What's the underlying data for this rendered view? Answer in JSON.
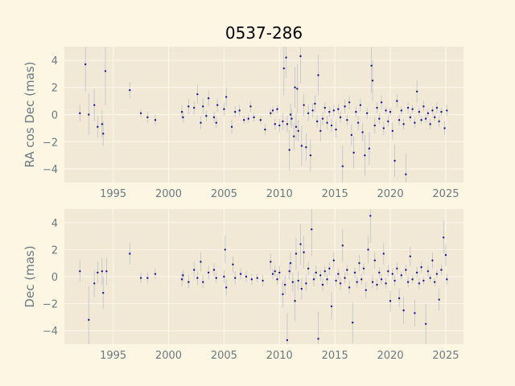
{
  "chart_data": {
    "type": "scatter",
    "title": "0537-286",
    "colors": {
      "background": "#fdf6e3",
      "axes_face": "#f1e9d6",
      "grid": "#fdf8ec",
      "marker": "#1a1a8c",
      "errorbar": "#a0a8c8"
    },
    "x_ticks": [
      "1995",
      "2000",
      "2005",
      "2010",
      "2015",
      "2020",
      "2025"
    ],
    "xlim": [
      1990.6,
      2026.6
    ],
    "panels": [
      {
        "ylabel": "RA cos Dec (mas)",
        "ylim": [
          -5,
          5
        ],
        "y_ticks": [
          "4",
          "2",
          "0",
          "−2",
          "−4"
        ],
        "y_tick_values": [
          4,
          2,
          0,
          -2,
          -4
        ],
        "points": [
          [
            1992.0,
            0.1,
            0.6
          ],
          [
            1992.5,
            3.7,
            2.0
          ],
          [
            1992.8,
            0.0,
            1.5
          ],
          [
            1993.3,
            0.7,
            1.2
          ],
          [
            1993.6,
            -0.9,
            0.8
          ],
          [
            1994.0,
            -0.7,
            1.0
          ],
          [
            1994.1,
            -1.4,
            0.9
          ],
          [
            1994.3,
            3.2,
            2.5
          ],
          [
            1996.5,
            1.8,
            0.6
          ],
          [
            1997.5,
            0.1,
            0.3
          ],
          [
            1998.1,
            -0.2,
            0.4
          ],
          [
            1998.8,
            -0.4,
            0.4
          ],
          [
            2001.2,
            0.2,
            0.5
          ],
          [
            2001.3,
            -0.2,
            0.4
          ],
          [
            2001.8,
            0.6,
            0.6
          ],
          [
            2002.3,
            0.5,
            0.5
          ],
          [
            2002.6,
            1.5,
            0.7
          ],
          [
            2002.9,
            -0.6,
            0.5
          ],
          [
            2003.1,
            0.6,
            0.6
          ],
          [
            2003.4,
            -0.1,
            0.4
          ],
          [
            2003.6,
            1.2,
            0.6
          ],
          [
            2004.1,
            -0.2,
            0.4
          ],
          [
            2004.3,
            -0.6,
            0.4
          ],
          [
            2004.4,
            0.7,
            0.5
          ],
          [
            2005.0,
            0.4,
            0.5
          ],
          [
            2005.2,
            1.3,
            0.7
          ],
          [
            2005.7,
            -0.9,
            0.5
          ],
          [
            2006.0,
            0.2,
            0.4
          ],
          [
            2006.4,
            0.3,
            0.4
          ],
          [
            2006.8,
            -0.4,
            0.3
          ],
          [
            2007.2,
            -0.3,
            0.3
          ],
          [
            2007.4,
            0.6,
            0.4
          ],
          [
            2007.7,
            -0.2,
            0.3
          ],
          [
            2008.3,
            -0.4,
            0.3
          ],
          [
            2008.7,
            -1.1,
            0.4
          ],
          [
            2009.2,
            0.1,
            0.3
          ],
          [
            2009.4,
            0.3,
            0.3
          ],
          [
            2009.6,
            -0.7,
            0.4
          ],
          [
            2009.8,
            0.4,
            0.3
          ],
          [
            2010.0,
            -0.8,
            0.5
          ],
          [
            2010.3,
            -0.5,
            0.6
          ],
          [
            2010.4,
            3.4,
            2.0
          ],
          [
            2010.6,
            4.2,
            1.5
          ],
          [
            2010.7,
            -0.7,
            0.6
          ],
          [
            2010.9,
            -2.6,
            1.5
          ],
          [
            2011.0,
            0.0,
            0.8
          ],
          [
            2011.1,
            -0.3,
            0.7
          ],
          [
            2011.3,
            -1.6,
            1.0
          ],
          [
            2011.4,
            2.0,
            1.5
          ],
          [
            2011.5,
            -0.9,
            1.0
          ],
          [
            2011.6,
            1.9,
            1.8
          ],
          [
            2011.7,
            -1.2,
            0.8
          ],
          [
            2011.9,
            4.3,
            2.0
          ],
          [
            2012.0,
            -2.3,
            1.5
          ],
          [
            2012.2,
            0.7,
            0.8
          ],
          [
            2012.4,
            -2.4,
            1.0
          ],
          [
            2012.6,
            0.1,
            0.6
          ],
          [
            2012.8,
            -3.0,
            1.2
          ],
          [
            2013.0,
            0.3,
            0.5
          ],
          [
            2013.2,
            0.8,
            0.6
          ],
          [
            2013.4,
            -0.5,
            0.5
          ],
          [
            2013.5,
            2.9,
            1.5
          ],
          [
            2013.7,
            -1.2,
            0.8
          ],
          [
            2013.9,
            -0.3,
            0.5
          ],
          [
            2014.1,
            0.5,
            0.4
          ],
          [
            2014.3,
            -0.6,
            0.5
          ],
          [
            2014.5,
            0.2,
            0.4
          ],
          [
            2014.7,
            -0.8,
            0.5
          ],
          [
            2014.9,
            0.3,
            0.4
          ],
          [
            2015.1,
            -1.1,
            0.6
          ],
          [
            2015.3,
            0.4,
            0.4
          ],
          [
            2015.5,
            -0.2,
            0.4
          ],
          [
            2015.7,
            -3.8,
            1.5
          ],
          [
            2015.9,
            0.6,
            0.5
          ],
          [
            2016.1,
            -0.4,
            0.4
          ],
          [
            2016.3,
            0.9,
            0.5
          ],
          [
            2016.5,
            -1.5,
            0.8
          ],
          [
            2016.7,
            -2.8,
            1.2
          ],
          [
            2016.9,
            0.2,
            0.4
          ],
          [
            2017.1,
            -0.6,
            0.5
          ],
          [
            2017.3,
            0.7,
            0.5
          ],
          [
            2017.5,
            -1.3,
            0.7
          ],
          [
            2017.7,
            -3.0,
            1.5
          ],
          [
            2017.9,
            0.1,
            0.4
          ],
          [
            2018.1,
            -2.5,
            1.2
          ],
          [
            2018.3,
            3.6,
            2.0
          ],
          [
            2018.4,
            2.5,
            1.5
          ],
          [
            2018.6,
            -0.8,
            0.6
          ],
          [
            2018.8,
            0.5,
            0.4
          ],
          [
            2019.0,
            -0.3,
            0.4
          ],
          [
            2019.2,
            0.9,
            0.5
          ],
          [
            2019.4,
            -1.0,
            0.5
          ],
          [
            2019.6,
            0.3,
            0.3
          ],
          [
            2019.8,
            -0.5,
            0.4
          ],
          [
            2020.0,
            0.2,
            0.3
          ],
          [
            2020.2,
            -1.2,
            0.6
          ],
          [
            2020.4,
            -3.4,
            1.2
          ],
          [
            2020.6,
            1.0,
            0.5
          ],
          [
            2020.8,
            -0.4,
            0.4
          ],
          [
            2021.0,
            0.3,
            0.3
          ],
          [
            2021.2,
            -0.7,
            0.4
          ],
          [
            2021.4,
            -4.4,
            1.5
          ],
          [
            2021.6,
            0.5,
            0.4
          ],
          [
            2021.8,
            -0.2,
            0.3
          ],
          [
            2022.0,
            0.4,
            0.3
          ],
          [
            2022.2,
            -0.6,
            0.4
          ],
          [
            2022.4,
            1.7,
            0.8
          ],
          [
            2022.6,
            0.2,
            0.3
          ],
          [
            2022.8,
            -0.4,
            0.3
          ],
          [
            2023.0,
            0.6,
            0.4
          ],
          [
            2023.2,
            -0.3,
            0.3
          ],
          [
            2023.4,
            0.1,
            0.3
          ],
          [
            2023.6,
            -0.7,
            0.4
          ],
          [
            2023.8,
            0.3,
            0.3
          ],
          [
            2024.0,
            -0.2,
            0.3
          ],
          [
            2024.2,
            0.5,
            0.4
          ],
          [
            2024.4,
            -0.5,
            0.4
          ],
          [
            2024.6,
            0.2,
            0.3
          ],
          [
            2024.9,
            -1.0,
            0.5
          ],
          [
            2025.1,
            0.3,
            0.4
          ]
        ]
      },
      {
        "ylabel": "Dec (mas)",
        "ylim": [
          -5,
          5
        ],
        "y_ticks": [
          "4",
          "2",
          "0",
          "−2",
          "−4"
        ],
        "y_tick_values": [
          4,
          2,
          0,
          -2,
          -4
        ],
        "points": [
          [
            1992.0,
            0.4,
            0.8
          ],
          [
            1992.8,
            -3.2,
            2.5
          ],
          [
            1993.3,
            -0.5,
            1.0
          ],
          [
            1993.6,
            0.3,
            0.8
          ],
          [
            1994.0,
            0.4,
            1.0
          ],
          [
            1994.1,
            -1.2,
            1.2
          ],
          [
            1994.4,
            0.4,
            1.0
          ],
          [
            1996.5,
            1.7,
            0.8
          ],
          [
            1997.5,
            -0.1,
            0.4
          ],
          [
            1998.1,
            -0.1,
            0.4
          ],
          [
            1998.8,
            0.2,
            0.4
          ],
          [
            2001.2,
            -0.2,
            0.5
          ],
          [
            2001.3,
            0.1,
            0.4
          ],
          [
            2001.8,
            -0.4,
            0.5
          ],
          [
            2002.3,
            0.5,
            0.6
          ],
          [
            2002.6,
            -0.1,
            0.5
          ],
          [
            2002.9,
            1.1,
            0.7
          ],
          [
            2003.1,
            -0.4,
            0.5
          ],
          [
            2003.6,
            0.3,
            0.5
          ],
          [
            2004.1,
            0.5,
            0.5
          ],
          [
            2004.3,
            -0.1,
            0.4
          ],
          [
            2005.0,
            0.0,
            0.5
          ],
          [
            2005.1,
            2.0,
            1.0
          ],
          [
            2005.2,
            -0.8,
            0.6
          ],
          [
            2005.8,
            0.9,
            0.6
          ],
          [
            2006.0,
            -0.1,
            0.5
          ],
          [
            2006.5,
            0.2,
            0.4
          ],
          [
            2007.0,
            0.0,
            0.4
          ],
          [
            2007.5,
            -0.2,
            0.4
          ],
          [
            2008.0,
            -0.1,
            0.3
          ],
          [
            2008.5,
            -0.3,
            0.4
          ],
          [
            2009.2,
            1.1,
            0.6
          ],
          [
            2009.4,
            0.2,
            0.4
          ],
          [
            2009.6,
            0.4,
            0.4
          ],
          [
            2009.8,
            -0.2,
            0.4
          ],
          [
            2010.0,
            0.3,
            0.5
          ],
          [
            2010.3,
            -1.3,
            1.0
          ],
          [
            2010.5,
            -0.6,
            0.7
          ],
          [
            2010.7,
            -4.7,
            2.0
          ],
          [
            2010.9,
            0.4,
            0.6
          ],
          [
            2011.0,
            1.0,
            0.8
          ],
          [
            2011.2,
            -0.4,
            0.7
          ],
          [
            2011.4,
            -1.8,
            1.5
          ],
          [
            2011.5,
            1.7,
            1.2
          ],
          [
            2011.7,
            -0.3,
            0.7
          ],
          [
            2011.9,
            2.4,
            1.5
          ],
          [
            2012.0,
            -0.9,
            0.8
          ],
          [
            2012.2,
            1.8,
            1.2
          ],
          [
            2012.4,
            -0.5,
            0.6
          ],
          [
            2012.6,
            0.6,
            0.5
          ],
          [
            2012.9,
            3.5,
            2.0
          ],
          [
            2013.1,
            -0.2,
            0.5
          ],
          [
            2013.3,
            0.3,
            0.5
          ],
          [
            2013.5,
            -4.6,
            2.0
          ],
          [
            2013.7,
            0.1,
            0.4
          ],
          [
            2013.9,
            -0.6,
            0.5
          ],
          [
            2014.1,
            0.4,
            0.4
          ],
          [
            2014.3,
            -0.2,
            0.4
          ],
          [
            2014.5,
            0.6,
            0.5
          ],
          [
            2014.7,
            -2.2,
            1.0
          ],
          [
            2014.9,
            1.2,
            0.6
          ],
          [
            2015.1,
            -0.3,
            0.4
          ],
          [
            2015.3,
            0.2,
            0.4
          ],
          [
            2015.5,
            -0.5,
            0.5
          ],
          [
            2015.7,
            2.3,
            1.2
          ],
          [
            2015.9,
            -0.1,
            0.4
          ],
          [
            2016.1,
            0.5,
            0.4
          ],
          [
            2016.3,
            -0.8,
            0.5
          ],
          [
            2016.6,
            -3.4,
            1.5
          ],
          [
            2016.8,
            0.3,
            0.4
          ],
          [
            2017.0,
            -0.4,
            0.4
          ],
          [
            2017.2,
            1.0,
            0.6
          ],
          [
            2017.4,
            -0.2,
            0.4
          ],
          [
            2017.6,
            0.6,
            0.4
          ],
          [
            2017.8,
            -1.0,
            0.6
          ],
          [
            2018.0,
            2.0,
            1.0
          ],
          [
            2018.2,
            4.5,
            2.0
          ],
          [
            2018.4,
            -0.4,
            0.5
          ],
          [
            2018.6,
            1.2,
            0.6
          ],
          [
            2018.8,
            -0.6,
            0.4
          ],
          [
            2019.0,
            0.3,
            0.4
          ],
          [
            2019.2,
            -0.2,
            0.4
          ],
          [
            2019.4,
            1.7,
            0.8
          ],
          [
            2019.6,
            -0.5,
            0.4
          ],
          [
            2019.8,
            0.4,
            0.4
          ],
          [
            2020.0,
            -1.8,
            0.8
          ],
          [
            2020.2,
            0.2,
            0.4
          ],
          [
            2020.4,
            -0.3,
            0.4
          ],
          [
            2020.6,
            0.6,
            0.4
          ],
          [
            2020.8,
            -1.6,
            0.7
          ],
          [
            2021.0,
            0.1,
            0.3
          ],
          [
            2021.2,
            -2.5,
            1.0
          ],
          [
            2021.4,
            0.5,
            0.4
          ],
          [
            2021.6,
            -0.4,
            0.4
          ],
          [
            2021.8,
            1.5,
            0.7
          ],
          [
            2022.0,
            -0.2,
            0.3
          ],
          [
            2022.2,
            -2.7,
            1.0
          ],
          [
            2022.4,
            0.3,
            0.4
          ],
          [
            2022.6,
            -0.5,
            0.4
          ],
          [
            2022.8,
            0.7,
            0.4
          ],
          [
            2023.0,
            -0.3,
            0.3
          ],
          [
            2023.2,
            -3.5,
            1.5
          ],
          [
            2023.4,
            0.4,
            0.4
          ],
          [
            2023.6,
            -0.1,
            0.3
          ],
          [
            2023.8,
            1.2,
            0.6
          ],
          [
            2024.0,
            -0.4,
            0.3
          ],
          [
            2024.2,
            0.2,
            0.3
          ],
          [
            2024.4,
            -1.7,
            0.8
          ],
          [
            2024.6,
            0.5,
            0.4
          ],
          [
            2024.8,
            2.9,
            1.2
          ],
          [
            2025.0,
            1.6,
            0.8
          ],
          [
            2025.1,
            -0.2,
            0.4
          ]
        ]
      }
    ]
  }
}
